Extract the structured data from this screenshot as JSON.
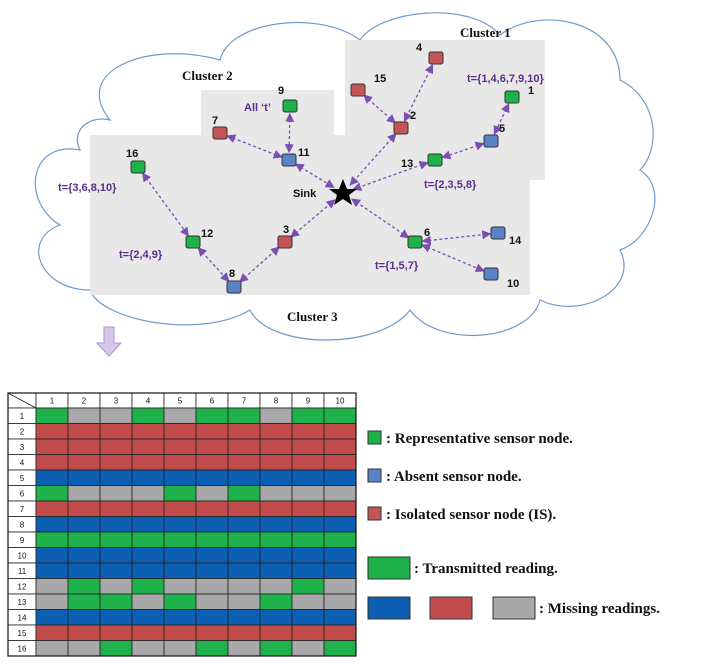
{
  "colors": {
    "representative": "#1fb24a",
    "absent": "#5b82c8",
    "isolated": "#c45556",
    "grid_green": "#1fb24a",
    "grid_blue": "#0c5fb2",
    "grid_red": "#c24b4c",
    "grid_gray": "#a8a8a8",
    "edge": "#7a4fb0",
    "region": "#e8e8e8"
  },
  "clusters": [
    {
      "label": "Cluster 1"
    },
    {
      "label": "Cluster 2"
    },
    {
      "label": "Cluster 3"
    }
  ],
  "sink_label": "Sink",
  "nodes": [
    {
      "id": "1",
      "type": "representative"
    },
    {
      "id": "2",
      "type": "isolated"
    },
    {
      "id": "3",
      "type": "isolated"
    },
    {
      "id": "4",
      "type": "isolated"
    },
    {
      "id": "5",
      "type": "absent"
    },
    {
      "id": "6",
      "type": "representative"
    },
    {
      "id": "7",
      "type": "isolated"
    },
    {
      "id": "8",
      "type": "absent"
    },
    {
      "id": "9",
      "type": "representative"
    },
    {
      "id": "10",
      "type": "absent"
    },
    {
      "id": "11",
      "type": "absent"
    },
    {
      "id": "12",
      "type": "representative"
    },
    {
      "id": "13",
      "type": "representative"
    },
    {
      "id": "14",
      "type": "absent"
    },
    {
      "id": "15",
      "type": "isolated"
    },
    {
      "id": "16",
      "type": "representative"
    }
  ],
  "edges": [
    [
      "4",
      "2"
    ],
    [
      "15",
      "2"
    ],
    [
      "2",
      "sink"
    ],
    [
      "1",
      "5"
    ],
    [
      "5",
      "13"
    ],
    [
      "13",
      "sink"
    ],
    [
      "9",
      "11"
    ],
    [
      "7",
      "11"
    ],
    [
      "11",
      "sink"
    ],
    [
      "16",
      "12"
    ],
    [
      "12",
      "8"
    ],
    [
      "8",
      "3"
    ],
    [
      "3",
      "sink"
    ],
    [
      "6",
      "sink"
    ],
    [
      "6",
      "14"
    ],
    [
      "6",
      "10"
    ]
  ],
  "t_labels": [
    {
      "node": "1",
      "text": "t={1,4,6,7,9,10}"
    },
    {
      "node": "9",
      "text": "All ‘t’"
    },
    {
      "node": "13",
      "text": "t={2,3,5,8}"
    },
    {
      "node": "16",
      "text": "t={3,6,8,10}"
    },
    {
      "node": "12",
      "text": "t={2,4,9}"
    },
    {
      "node": "6",
      "text": "t={1,5,7}"
    }
  ],
  "grid": {
    "columns": [
      "1",
      "2",
      "3",
      "4",
      "5",
      "6",
      "7",
      "8",
      "9",
      "10"
    ],
    "rows": [
      {
        "label": "1",
        "cells": "GYYGYGGYGG"
      },
      {
        "label": "2",
        "cells": "RRRRRRRRRR"
      },
      {
        "label": "3",
        "cells": "RRRRRRRRRR"
      },
      {
        "label": "4",
        "cells": "RRRRRRRRRR"
      },
      {
        "label": "5",
        "cells": "BBBBBBBBBB"
      },
      {
        "label": "6",
        "cells": "GYYYGYGYYY"
      },
      {
        "label": "7",
        "cells": "RRRRRRRRRR"
      },
      {
        "label": "8",
        "cells": "BBBBBBBBBB"
      },
      {
        "label": "9",
        "cells": "GGGGGGGGGG"
      },
      {
        "label": "10",
        "cells": "BBBBBBBBBB"
      },
      {
        "label": "11",
        "cells": "BBBBBBBBBB"
      },
      {
        "label": "12",
        "cells": "YGYGYYYYGY"
      },
      {
        "label": "13",
        "cells": "YGGYGYYGYY"
      },
      {
        "label": "14",
        "cells": "BBBBBBBBBB"
      },
      {
        "label": "15",
        "cells": "RRRRRRRRRR"
      },
      {
        "label": "16",
        "cells": "YYGYYGYGYG"
      }
    ]
  },
  "legend": {
    "representative": ": Representative sensor node.",
    "absent": ": Absent sensor node.",
    "isolated": ": Isolated sensor node (IS).",
    "transmitted": ": Transmitted reading.",
    "missing": ": Missing readings."
  }
}
